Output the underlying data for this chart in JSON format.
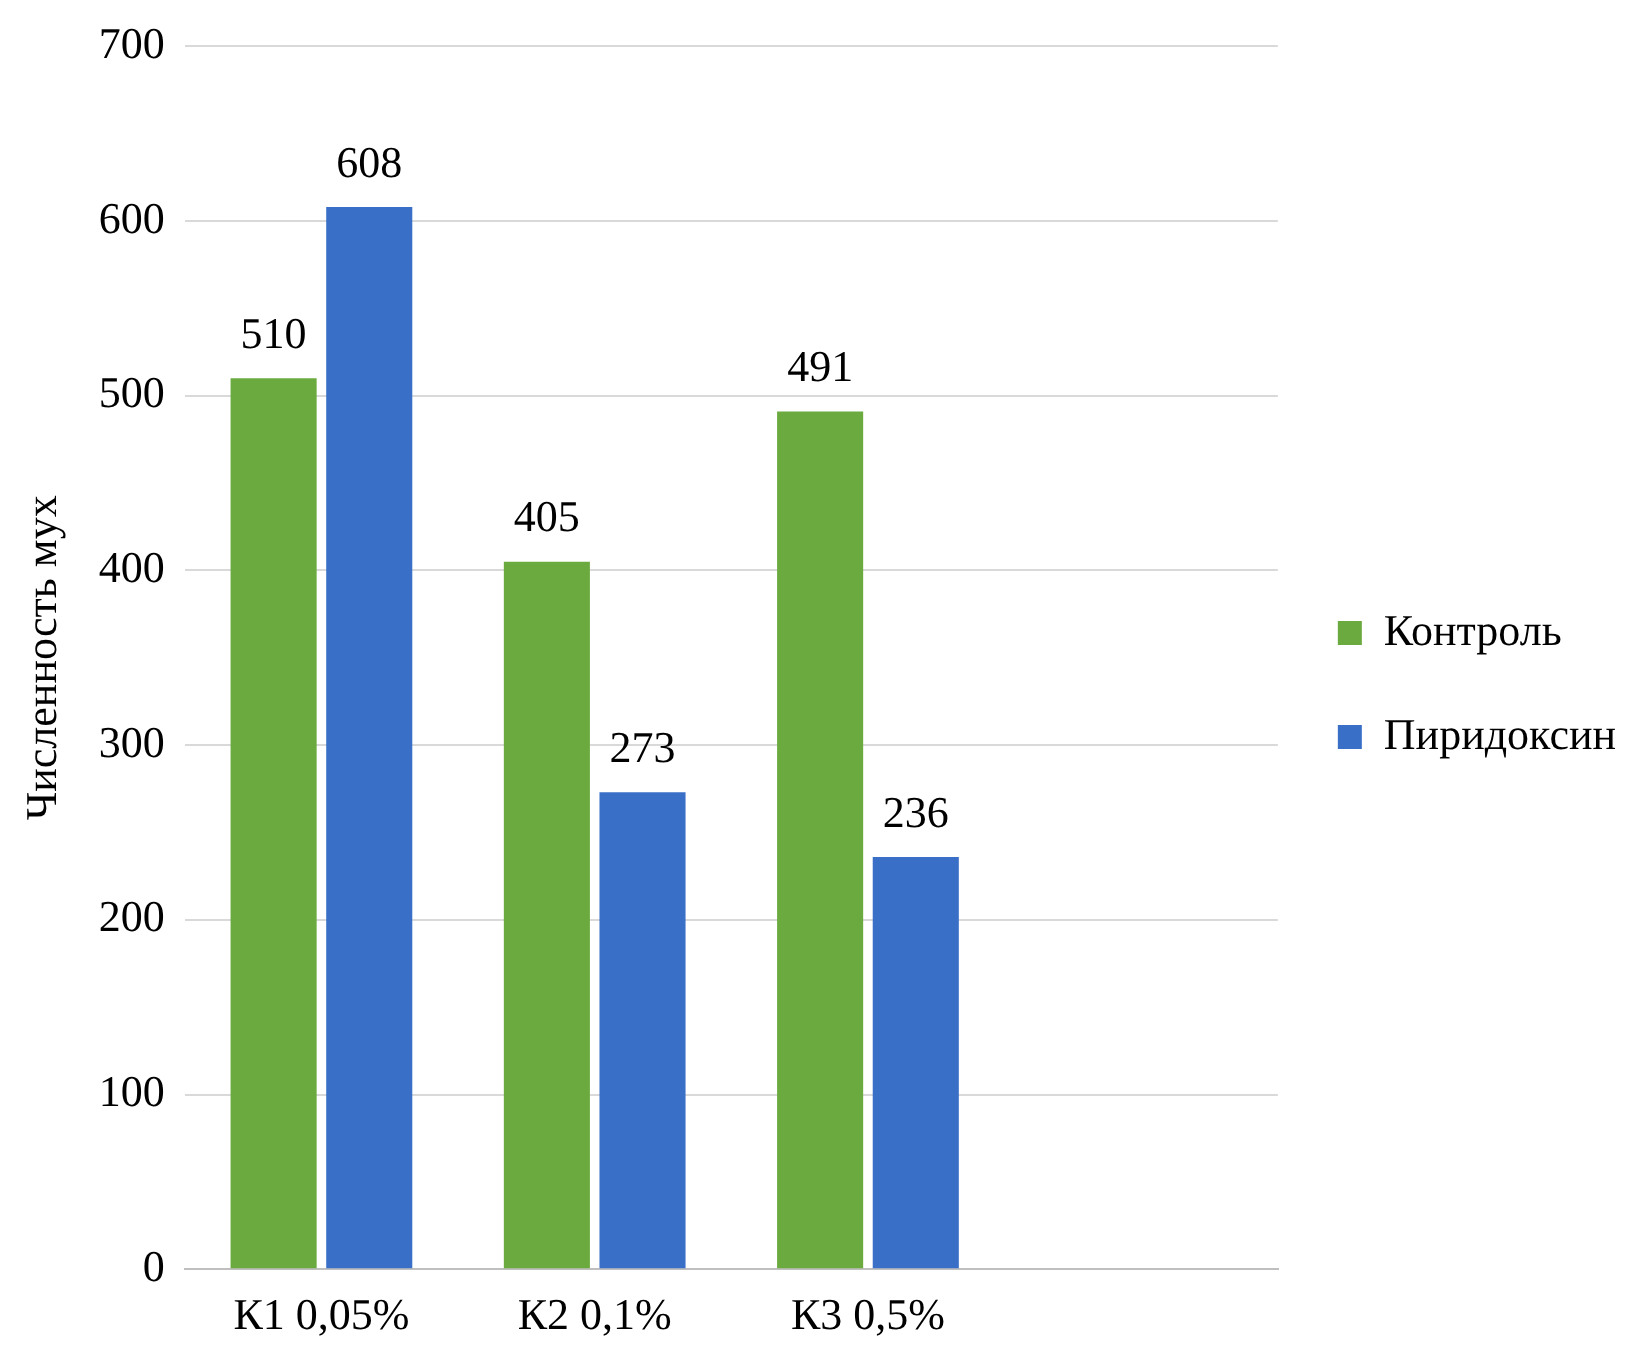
{
  "chart_data": {
    "type": "bar",
    "ylabel": "Численность мух",
    "categories": [
      "К1 0,05%",
      "К2 0,1%",
      "К3 0,5%",
      null
    ],
    "series": [
      {
        "name": "Контроль",
        "color": "#6aaa3f",
        "values": [
          510,
          405,
          491,
          null
        ]
      },
      {
        "name": "Пиридоксин",
        "color": "#3a6fc8",
        "values": [
          608,
          273,
          236,
          null
        ]
      }
    ],
    "ylim": [
      0,
      700
    ],
    "yticks": [
      0,
      100,
      200,
      300,
      400,
      500,
      600,
      700
    ],
    "grid": "y",
    "legend": "right",
    "data_labels": true
  }
}
